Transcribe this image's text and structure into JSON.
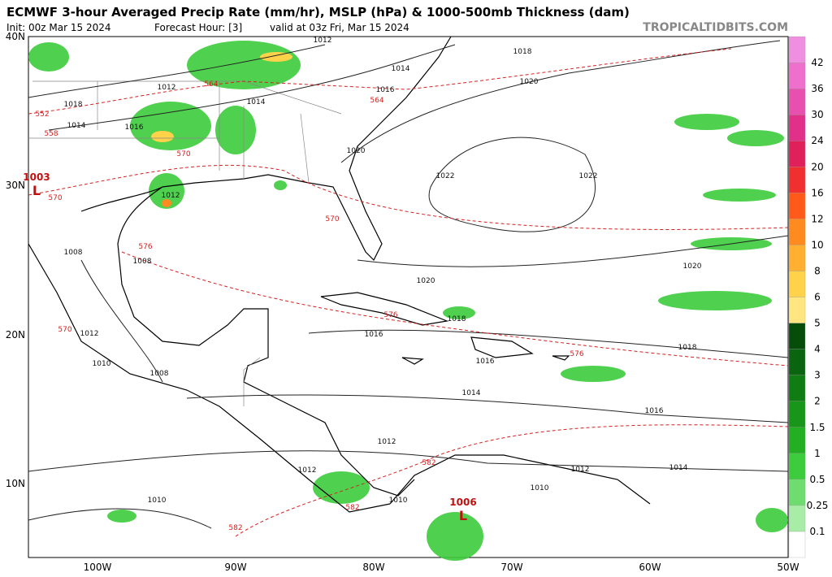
{
  "header": {
    "title": "ECMWF 3-hour Averaged Precip Rate (mm/hr), MSLP (hPa) & 1000-500mb Thickness (dam)",
    "init": "Init: 00z Mar 15 2024",
    "forecast_hour": "Forecast Hour: [3]",
    "valid": "valid at 03z Fri, Mar 15 2024",
    "source": "TROPICALTIDBITS.COM"
  },
  "map": {
    "lat_labels": [
      "40N",
      "30N",
      "20N",
      "10N"
    ],
    "lon_labels": [
      "100W",
      "90W",
      "80W",
      "70W",
      "60W",
      "50W"
    ],
    "isobar_labels": [
      "1012",
      "1018",
      "1014",
      "1012",
      "1016",
      "1014",
      "1018",
      "1014",
      "1016",
      "1020",
      "1020",
      "1022",
      "1022",
      "1012",
      "1008",
      "1008",
      "1020",
      "1020",
      "1018",
      "1016",
      "1018",
      "1016",
      "1010",
      "1008",
      "1014",
      "1016",
      "1012",
      "1014",
      "1012",
      "1010",
      "1010",
      "1010",
      "1012",
      "1012"
    ],
    "thickness_labels": [
      "552",
      "558",
      "564",
      "564",
      "570",
      "570",
      "570",
      "576",
      "576",
      "576",
      "582",
      "582",
      "582",
      "570"
    ],
    "lows": [
      {
        "pressure": "1003",
        "symbol": "L"
      },
      {
        "pressure": "1006",
        "symbol": "L"
      }
    ]
  },
  "colorbar": {
    "labels": [
      "0.1",
      "0.25",
      "0.5",
      "1",
      "1.5",
      "2",
      "3",
      "4",
      "5",
      "6",
      "8",
      "10",
      "12",
      "16",
      "20",
      "24",
      "30",
      "36",
      "42"
    ],
    "colors": [
      "#ffffff",
      "#a8eca8",
      "#6fdc6f",
      "#3ccc3c",
      "#22b022",
      "#17961a",
      "#0f7d14",
      "#0a6410",
      "#064c0a",
      "#ffe680",
      "#ffd24a",
      "#ffb030",
      "#ff8a20",
      "#ff5a1a",
      "#f03030",
      "#e0205a",
      "#e0308a",
      "#e850b0",
      "#ee70cc",
      "#f08ee0"
    ]
  }
}
